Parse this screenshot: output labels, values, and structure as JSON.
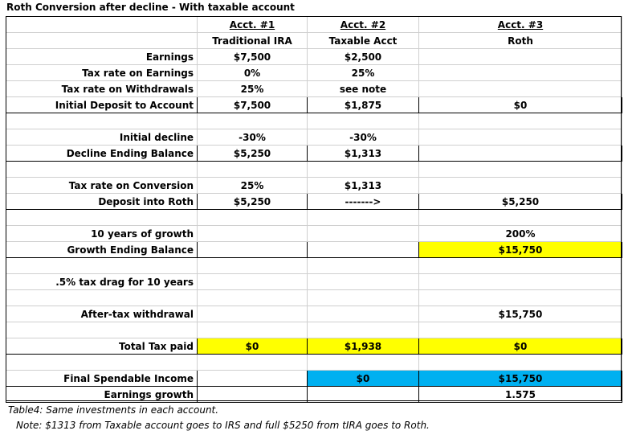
{
  "title": "Roth Conversion after decline - With taxable account",
  "headers": {
    "acct1_line1": "Acct. #1",
    "acct1_line2": "Traditional IRA",
    "acct2_line1": "Acct. #2",
    "acct2_line2": "Taxable Acct",
    "acct3_line1": "Acct. #3",
    "acct3_line2": "Roth"
  },
  "rows": [
    {
      "label": "Earnings",
      "a1": "$7,500",
      "a2": "$2,500",
      "a3": ""
    },
    {
      "label": "Tax rate on Earnings",
      "a1": "0%",
      "a2": "25%",
      "a3": ""
    },
    {
      "label": "Tax rate on Withdrawals",
      "a1": "25%",
      "a2": "see note",
      "a3": ""
    },
    {
      "label": "Initial Deposit to Account",
      "a1": "$7,500",
      "a2": "$1,875",
      "a3": "$0"
    },
    {
      "label": "",
      "a1": "",
      "a2": "",
      "a3": ""
    },
    {
      "label": "Initial decline",
      "a1": "-30%",
      "a2": "-30%",
      "a3": ""
    },
    {
      "label": "Decline Ending Balance",
      "a1": "$5,250",
      "a2": "$1,313",
      "a3": ""
    },
    {
      "label": "",
      "a1": "",
      "a2": "",
      "a3": ""
    },
    {
      "label": "Tax rate on Conversion",
      "a1": "25%",
      "a2": "$1,313",
      "a3": ""
    },
    {
      "label": "Deposit into Roth",
      "a1": "$5,250",
      "a2": "------->",
      "a3": "$5,250"
    },
    {
      "label": "",
      "a1": "",
      "a2": "",
      "a3": ""
    },
    {
      "label": "10 years of growth",
      "a1": "",
      "a2": "",
      "a3": "200%"
    },
    {
      "label": "Growth Ending Balance",
      "a1": "",
      "a2": "",
      "a3": "$15,750"
    },
    {
      "label": "",
      "a1": "",
      "a2": "",
      "a3": ""
    },
    {
      "label": ".5% tax drag for 10 years",
      "a1": "",
      "a2": "",
      "a3": ""
    },
    {
      "label": "",
      "a1": "",
      "a2": "",
      "a3": ""
    },
    {
      "label": "After-tax withdrawal",
      "a1": "",
      "a2": "",
      "a3": "$15,750"
    },
    {
      "label": "",
      "a1": "",
      "a2": "",
      "a3": ""
    },
    {
      "label": "Total Tax paid",
      "a1": "$0",
      "a2": "$1,938",
      "a3": "$0"
    },
    {
      "label": "",
      "a1": "",
      "a2": "",
      "a3": ""
    },
    {
      "label": "Final Spendable Income",
      "a1": "",
      "a2": "$0",
      "a3": "$15,750"
    },
    {
      "label": "Earnings growth",
      "a1": "",
      "a2": "",
      "a3": "1.575"
    }
  ],
  "caption": "Table4: Same investments in each account.",
  "note": "Note: $1313 from Taxable account goes to IRS and full $5250 from tIRA goes to Roth.",
  "colors": {
    "highlight_yellow": "#ffff00",
    "highlight_blue": "#00b0f0"
  }
}
